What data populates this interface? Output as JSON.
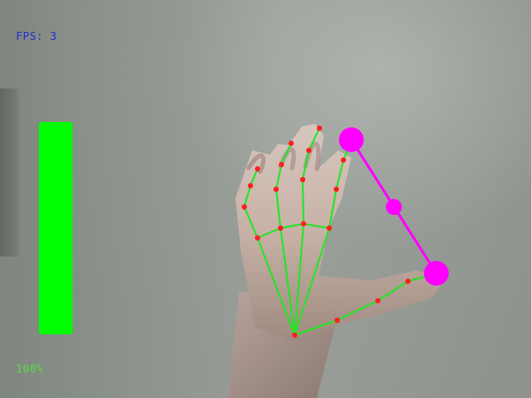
{
  "overlay": {
    "fps_text": "FPS: 3",
    "volume_text": "100%",
    "volume_level": 1
  },
  "colors": {
    "background": "#8f948f",
    "fps": "#202ed0",
    "volume_bar": "#00ff00",
    "volume_text": "#58dd3d",
    "hand_skeleton": "#22e622",
    "landmark": "#ff1e1e",
    "control_line": "#ff00ff"
  },
  "icons": {
    "volume_control": "vertical-level-bar",
    "hand_tracking": "hand-landmark-skeleton"
  }
}
